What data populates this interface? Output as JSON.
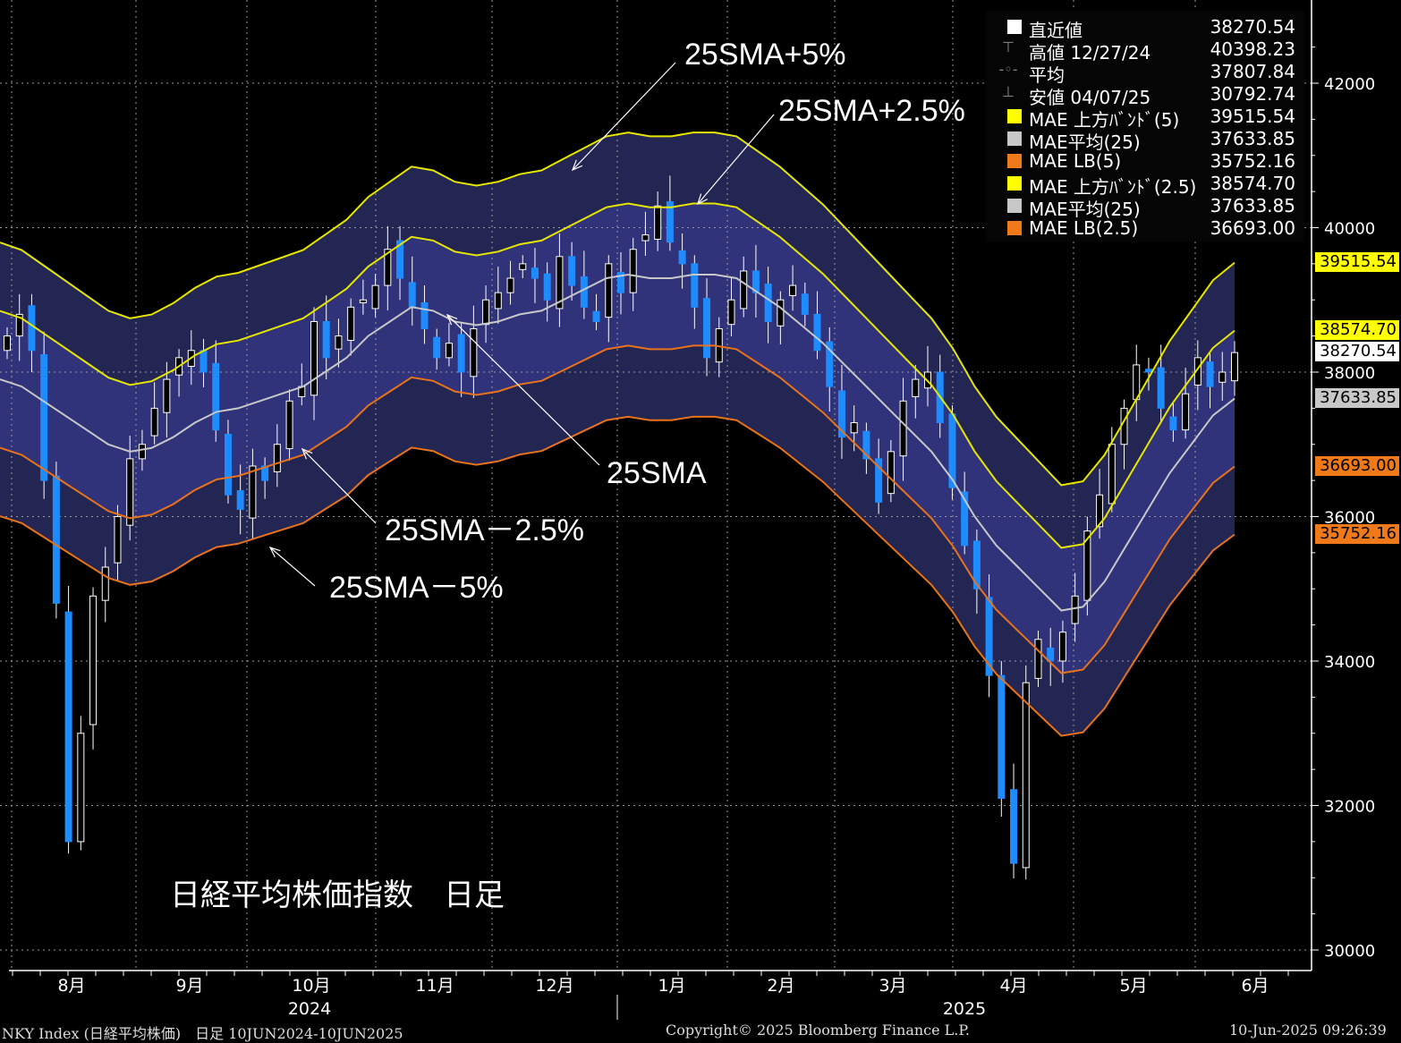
{
  "chart_data": {
    "type": "candlestick",
    "title": "日経平均株価指数　日足",
    "ylim": [
      29700,
      43000
    ],
    "y_ticks": [
      30000,
      32000,
      34000,
      36000,
      38000,
      40000,
      42000
    ],
    "x_months": [
      "8月",
      "9月",
      "10月",
      "11月",
      "12月",
      "1月",
      "2月",
      "3月",
      "4月",
      "5月",
      "6月"
    ],
    "x_years": [
      "2024",
      "2025"
    ],
    "grid": true,
    "legend_position": "top-right",
    "series_sma25": [
      37900,
      37800,
      37600,
      37400,
      37200,
      37000,
      36900,
      36950,
      37100,
      37300,
      37450,
      37500,
      37600,
      37700,
      37800,
      38000,
      38200,
      38500,
      38700,
      38900,
      38850,
      38700,
      38650,
      38700,
      38800,
      38850,
      39000,
      39150,
      39300,
      39350,
      39300,
      39300,
      39350,
      39350,
      39300,
      39100,
      38900,
      38650,
      38400,
      38100,
      37800,
      37500,
      37200,
      36900,
      36500,
      36000,
      35600,
      35300,
      35000,
      34700,
      34750,
      35100,
      35600,
      36100,
      36600,
      37000,
      37400,
      37633.85
    ],
    "bands": [
      {
        "name": "MAE 上方ﾊﾞﾝﾄﾞ(5)",
        "pct": 5,
        "color": "#e6e600"
      },
      {
        "name": "MAE 上方ﾊﾞﾝﾄﾞ(2.5)",
        "pct": 2.5,
        "color": "#e6e600"
      },
      {
        "name": "MAE平均(25)",
        "pct": 0,
        "color": "#c8c8c8"
      },
      {
        "name": "MAE LB(2.5)",
        "pct": -2.5,
        "color": "#e8731c"
      },
      {
        "name": "MAE LB(5)",
        "pct": -5,
        "color": "#e8731c"
      }
    ],
    "price_close": [
      38500,
      38800,
      38300,
      36500,
      34800,
      31500,
      33000,
      34900,
      35300,
      36000,
      36800,
      37000,
      37500,
      37900,
      38200,
      38300,
      38000,
      37200,
      36300,
      36100,
      36700,
      36500,
      37000,
      37600,
      37800,
      38700,
      38200,
      38500,
      38900,
      39000,
      39200,
      39700,
      39300,
      38900,
      38600,
      38200,
      38400,
      38000,
      38600,
      39000,
      39100,
      39300,
      39500,
      39300,
      39000,
      39600,
      39200,
      38900,
      38700,
      39500,
      39100,
      39700,
      39900,
      40300,
      39800,
      39500,
      38900,
      38200,
      38600,
      39000,
      39400,
      39100,
      38700,
      39000,
      39200,
      38800,
      38300,
      37800,
      37100,
      37300,
      36800,
      36200,
      36900,
      37600,
      37900,
      38000,
      37300,
      36400,
      35600,
      35000,
      33800,
      32100,
      31200,
      33700,
      34300,
      34000,
      34400,
      34900,
      35800,
      36300,
      37000,
      37500,
      38100,
      38000,
      37500,
      37200,
      37700,
      38200,
      37800,
      38000,
      38270.54
    ],
    "stats": {
      "latest": {
        "label": "直近値",
        "value": "38270.54"
      },
      "high": {
        "label": "高値",
        "date": "12/27/24",
        "value": "40398.23"
      },
      "avg": {
        "label": "平均",
        "value": "37807.84"
      },
      "low": {
        "label": "安値",
        "date": "04/07/25",
        "value": "30792.74"
      }
    },
    "last_values": {
      "upper5": "39515.54",
      "upper25": "38574.70",
      "latest": "38270.54",
      "sma": "37633.85",
      "lower25": "36693.00",
      "lower5": "35752.16"
    },
    "annotations": [
      "25SMA+5%",
      "25SMA+2.5%",
      "25SMA",
      "25SMA－2.5%",
      "25SMA－5%"
    ]
  },
  "legend": {
    "rows": [
      {
        "glyph": "",
        "swatch": "#ffffff",
        "label": "直近値",
        "value": "38270.54"
      },
      {
        "glyph": "⊤",
        "swatch": "",
        "label": "高値 12/27/24",
        "value": "40398.23"
      },
      {
        "glyph": "-◦-",
        "swatch": "",
        "label": "平均",
        "value": "37807.84"
      },
      {
        "glyph": "⊥",
        "swatch": "",
        "label": "安値 04/07/25",
        "value": "30792.74"
      },
      {
        "glyph": "",
        "swatch": "#ffff00",
        "label": "MAE 上方ﾊﾞﾝﾄﾞ(5)",
        "value": "39515.54"
      },
      {
        "glyph": "",
        "swatch": "#c8c8c8",
        "label": "MAE平均(25)",
        "value": "37633.85"
      },
      {
        "glyph": "",
        "swatch": "#f07a1a",
        "label": "MAE LB(5)",
        "value": "35752.16"
      },
      {
        "glyph": "",
        "swatch": "#ffff00",
        "label": "MAE 上方ﾊﾞﾝﾄﾞ(2.5)",
        "value": "38574.70"
      },
      {
        "glyph": "",
        "swatch": "#c8c8c8",
        "label": "MAE平均(25)",
        "value": "37633.85"
      },
      {
        "glyph": "",
        "swatch": "#f07a1a",
        "label": "MAE LB(2.5)",
        "value": "36693.00"
      }
    ]
  },
  "footer": {
    "left": "NKY Index (日経平均株価)　日足 10JUN2024-10JUN2025",
    "center": "Copyright© 2025 Bloomberg Finance L.P.",
    "right": "10-Jun-2025 09:26:39"
  },
  "colors": {
    "outer_band": "#232552",
    "inner_band": "#30327a",
    "up_candle": "#ffffff",
    "down_candle": "#1e8cff",
    "yellow": "#e6e600",
    "orange": "#e8731c",
    "sma": "#c8c8c8"
  }
}
